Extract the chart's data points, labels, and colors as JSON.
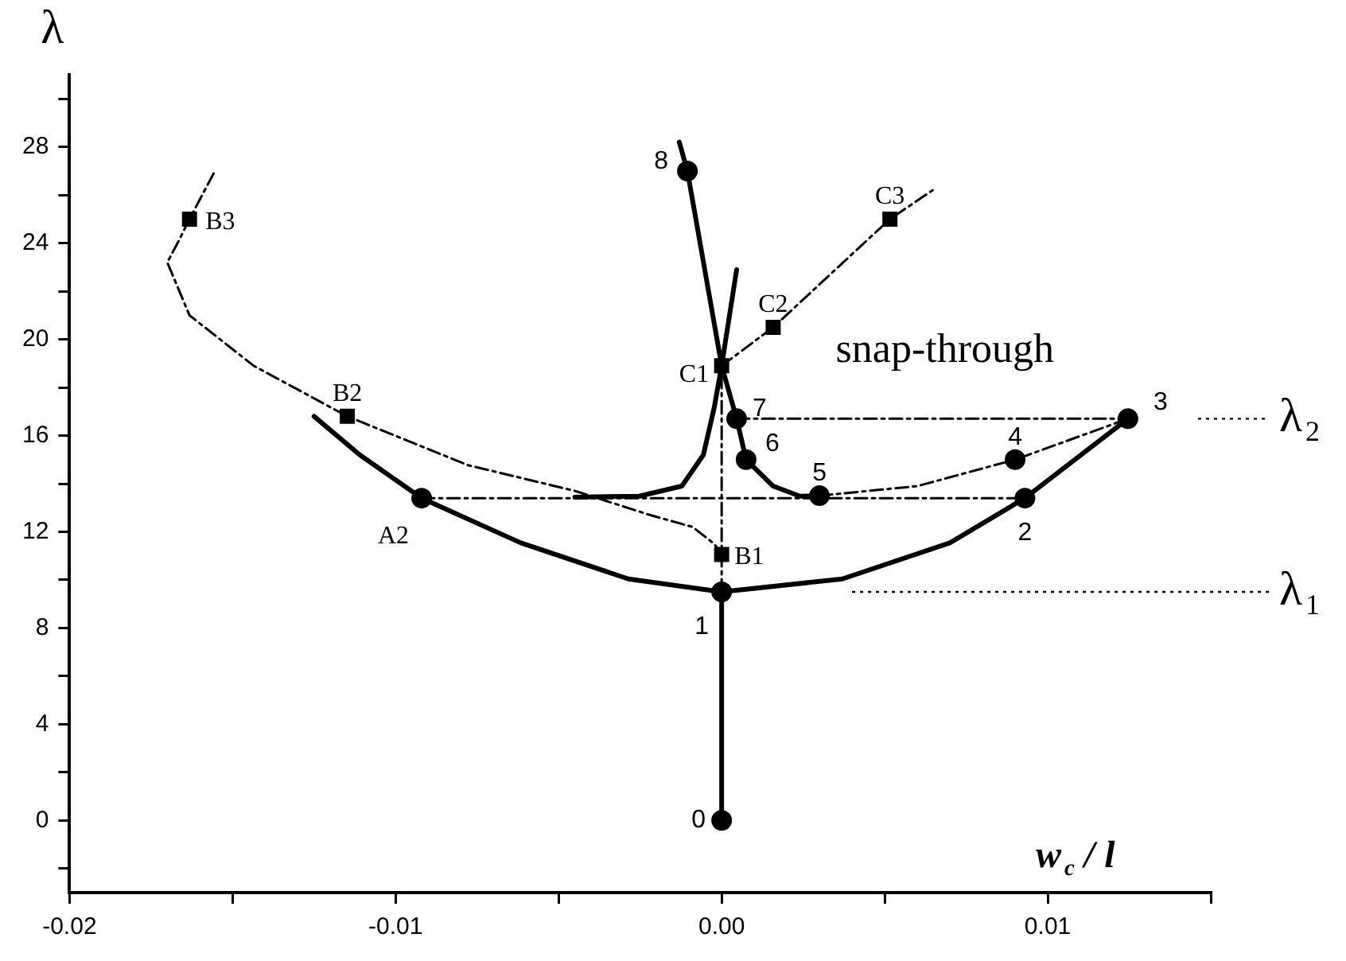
{
  "chart_data": {
    "type": "line",
    "ylabel": "λ",
    "xlabel": "w$_{c}$ / l",
    "xlim": [
      -0.02,
      0.015
    ],
    "ylim": [
      -3,
      31
    ],
    "xticks": [
      {
        "value": -0.02,
        "label": "-0.02"
      },
      {
        "value": -0.015,
        "label": null
      },
      {
        "value": -0.01,
        "label": "-0.01"
      },
      {
        "value": -0.005,
        "label": null
      },
      {
        "value": 0,
        "label": "0.00"
      },
      {
        "value": 0.005,
        "label": null
      },
      {
        "value": 0.01,
        "label": "0.01"
      },
      {
        "value": 0.015,
        "label": null
      }
    ],
    "yticks": [
      {
        "value": -2,
        "label": null
      },
      0,
      {
        "value": 2,
        "label": null
      },
      4,
      {
        "value": 6,
        "label": null
      },
      8,
      {
        "value": 10,
        "label": null
      },
      12,
      {
        "value": 14,
        "label": null
      },
      16,
      {
        "value": 18,
        "label": null
      },
      20,
      {
        "value": 22,
        "label": null
      },
      24,
      {
        "value": 26,
        "label": null
      },
      28,
      {
        "value": 30,
        "label": null
      }
    ],
    "legend": false,
    "series": [
      {
        "type": "line",
        "color": "#000000",
        "line_style": "solid",
        "marker": "none",
        "x": [
          0,
          0
        ],
        "values": [
          0,
          9.5
        ]
      },
      {
        "type": "line",
        "color": "#000000",
        "line_style": "solid",
        "marker": "none",
        "x": [
          -0.0125,
          -0.0111,
          -0.0092,
          -0.00616,
          -0.00286,
          0,
          0.0037,
          0.007,
          0.0093,
          0.01246
        ],
        "values": [
          16.8,
          15.2,
          13.4,
          11.54,
          10.04,
          9.5,
          10.04,
          11.54,
          13.4,
          16.7
        ]
      },
      {
        "type": "line",
        "color": "#000000",
        "line_style": "solid",
        "marker": "none",
        "x": [
          -0.0045,
          -0.00253,
          -0.00122,
          -0.00056,
          -0.00023,
          0,
          0.00046
        ],
        "values": [
          13.44,
          13.48,
          13.9,
          15.2,
          17.15,
          18.9,
          22.9
        ]
      },
      {
        "type": "line",
        "color": "#000000",
        "line_style": "solid",
        "marker": "none",
        "x": [
          -0.0013,
          -0.00105,
          0,
          0.00046,
          0.00075,
          0.00158,
          0.0024,
          0.003
        ],
        "values": [
          28.2,
          27.0,
          18.9,
          16.7,
          15.0,
          13.9,
          13.48,
          13.5
        ]
      },
      {
        "type": "line",
        "color": "#000000",
        "line_style": "dashed",
        "marker": "none",
        "x": [
          0,
          0
        ],
        "values": [
          9.5,
          18.9
        ]
      },
      {
        "type": "line",
        "color": "#000000",
        "line_style": "dashed",
        "marker": "none",
        "x": [
          0,
          0.00158,
          0.00516,
          0.00647
        ],
        "values": [
          18.9,
          20.5,
          25.0,
          26.2
        ]
      },
      {
        "type": "line",
        "color": "#000000",
        "line_style": "dashed",
        "marker": "none",
        "x": [
          -0.01558,
          -0.01632,
          -0.01665,
          -0.017,
          -0.01632,
          -0.01435,
          -0.01148,
          -0.00778,
          -0.0045,
          -0.0022,
          -0.00089,
          -0.00023,
          0
        ],
        "values": [
          26.9,
          25.0,
          24.1,
          23.2,
          21.0,
          18.9,
          16.8,
          14.77,
          13.7,
          12.7,
          12.2,
          11.5,
          11.06
        ]
      },
      {
        "type": "line",
        "color": "#000000",
        "line_style": "dashed",
        "marker": "none",
        "x": [
          0.003,
          0.006,
          0.009,
          0.01246
        ],
        "values": [
          13.5,
          13.9,
          15.0,
          16.7
        ]
      },
      {
        "type": "line",
        "color": "#000000",
        "line_style": "dashed",
        "marker": "none",
        "x": [
          -0.0092,
          0.0093
        ],
        "values": [
          13.4,
          13.4
        ]
      },
      {
        "type": "line",
        "color": "#000000",
        "line_style": "dashed",
        "marker": "none",
        "x": [
          0.00046,
          0.01246
        ],
        "values": [
          16.7,
          16.7
        ]
      },
      {
        "type": "scatter",
        "color": "#000000",
        "marker": "circle",
        "x": [
          0,
          0,
          0.0093,
          0.01246,
          0.009,
          0.003,
          0.00075,
          0.00046,
          -0.00105,
          -0.0092
        ],
        "values": [
          0,
          9.5,
          13.4,
          16.7,
          15.0,
          13.5,
          15.0,
          16.7,
          27.0,
          13.4
        ]
      },
      {
        "type": "scatter",
        "color": "#000000",
        "marker": "square",
        "x": [
          0,
          -0.01148,
          -0.01632,
          0,
          0.00158,
          0.00516
        ],
        "values": [
          11.06,
          16.8,
          25.0,
          18.9,
          20.5,
          25.0
        ]
      }
    ],
    "ref_lines": [
      {
        "axis": "y",
        "value": 9.5,
        "label": "λ$_{1}$",
        "color": "#000000",
        "line_style": "dotted"
      },
      {
        "axis": "y",
        "value": 16.7,
        "label": "λ$_{2}$",
        "color": "#000000",
        "line_style": "dotted"
      }
    ],
    "annotations": [
      {
        "text": "0",
        "x": 0,
        "y": 0
      },
      {
        "text": "1",
        "x": 0,
        "y": 9.5
      },
      {
        "text": "2",
        "x": 0.0093,
        "y": 13.4
      },
      {
        "text": "3",
        "x": 0.01246,
        "y": 16.7
      },
      {
        "text": "4",
        "x": 0.009,
        "y": 15.0
      },
      {
        "text": "5",
        "x": 0.003,
        "y": 13.5
      },
      {
        "text": "6",
        "x": 0.00075,
        "y": 15.0
      },
      {
        "text": "7",
        "x": 0.00046,
        "y": 16.7
      },
      {
        "text": "8",
        "x": -0.00105,
        "y": 27.0
      },
      {
        "text": "A2",
        "x": -0.0092,
        "y": 13.4
      },
      {
        "text": "B1",
        "x": 0,
        "y": 11.06
      },
      {
        "text": "B2",
        "x": -0.01148,
        "y": 16.8
      },
      {
        "text": "B3",
        "x": -0.01632,
        "y": 25.0
      },
      {
        "text": "C1",
        "x": 0,
        "y": 18.9
      },
      {
        "text": "C2",
        "x": 0.00158,
        "y": 20.5
      },
      {
        "text": "C3",
        "x": 0.00516,
        "y": 25.0
      },
      "snap-through"
    ]
  }
}
